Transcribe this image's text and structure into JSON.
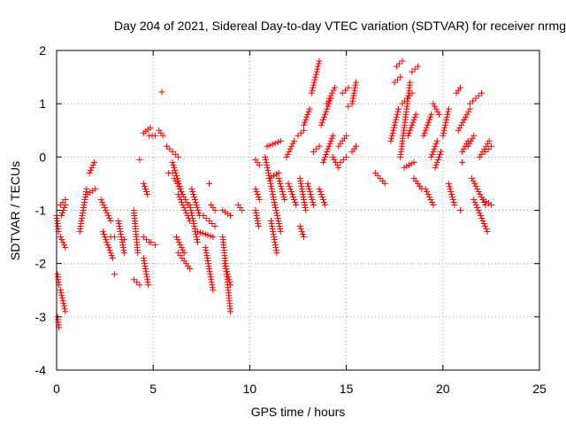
{
  "chart_data": {
    "type": "scatter",
    "title": "Day 204 of 2021, Sidereal Day-to-day VTEC variation (SDTVAR) for receiver nrmg",
    "xlabel": "GPS time / hours",
    "ylabel": "SDTVAR / TECUs",
    "xlim": [
      0,
      25
    ],
    "ylim": [
      -4,
      2
    ],
    "xticks": [
      0,
      5,
      10,
      15,
      20,
      25
    ],
    "xtick_labels": [
      "0",
      "5",
      "10",
      "15",
      "20",
      "25"
    ],
    "yticks": [
      -4,
      -3,
      -2,
      -1,
      0,
      1,
      2
    ],
    "ytick_labels": [
      "-4",
      "-3",
      "-2",
      "-1",
      "0",
      "1",
      "2"
    ],
    "grid": true,
    "marker": "+",
    "marker_color": "#ff0000",
    "tracks": [
      {
        "x": [
          0.0,
          0.1
        ],
        "y": [
          -1.1,
          -1.4
        ]
      },
      {
        "x": [
          0.05,
          0.12
        ],
        "y": [
          -2.2,
          -2.4
        ]
      },
      {
        "x": [
          0.05,
          0.12
        ],
        "y": [
          -3.0,
          -3.2
        ]
      },
      {
        "x": [
          0.2,
          0.45
        ],
        "y": [
          -0.9,
          -0.8
        ]
      },
      {
        "x": [
          0.2,
          0.45
        ],
        "y": [
          -1.5,
          -1.7
        ]
      },
      {
        "x": [
          0.25,
          0.45
        ],
        "y": [
          -1.1,
          -0.9
        ]
      },
      {
        "x": [
          0.2,
          0.45
        ],
        "y": [
          -2.5,
          -2.9
        ]
      },
      {
        "x": [
          1.2,
          1.55
        ],
        "y": [
          -1.4,
          -0.6
        ]
      },
      {
        "x": [
          1.6,
          2.0
        ],
        "y": [
          -0.7,
          -0.6
        ]
      },
      {
        "x": [
          1.7,
          1.95
        ],
        "y": [
          -0.3,
          -0.1
        ]
      },
      {
        "x": [
          2.3,
          2.8
        ],
        "y": [
          -0.8,
          -1.2
        ]
      },
      {
        "x": [
          2.4,
          2.9
        ],
        "y": [
          -1.4,
          -1.9
        ]
      },
      {
        "x": [
          2.8,
          3.0
        ],
        "y": [
          -1.5,
          -1.5
        ]
      },
      {
        "x": [
          3.2,
          3.5
        ],
        "y": [
          -1.2,
          -1.8
        ]
      },
      {
        "x": [
          4.0,
          4.2
        ],
        "y": [
          -1.0,
          -1.8
        ]
      },
      {
        "x": [
          4.0,
          4.3
        ],
        "y": [
          -2.3,
          -2.4
        ]
      },
      {
        "x": [
          4.5,
          4.85
        ],
        "y": [
          0.45,
          0.55
        ]
      },
      {
        "x": [
          4.5,
          4.7
        ],
        "y": [
          -0.5,
          -0.7
        ]
      },
      {
        "x": [
          4.5,
          4.8
        ],
        "y": [
          -1.5,
          -1.6
        ]
      },
      {
        "x": [
          4.5,
          4.75
        ],
        "y": [
          -1.9,
          -2.4
        ]
      },
      {
        "x": [
          4.8,
          5.1
        ],
        "y": [
          0.4,
          0.4
        ]
      },
      {
        "x": [
          4.9,
          5.1
        ],
        "y": [
          -1.6,
          -1.65
        ]
      },
      {
        "x": [
          5.3,
          5.5
        ],
        "y": [
          0.5,
          0.4
        ]
      },
      {
        "x": [
          5.7,
          6.3
        ],
        "y": [
          0.2,
          0.0
        ]
      },
      {
        "x": [
          5.8,
          6.0
        ],
        "y": [
          -0.3,
          -0.3
        ]
      },
      {
        "x": [
          6.0,
          6.5
        ],
        "y": [
          -0.1,
          -0.7
        ]
      },
      {
        "x": [
          6.1,
          6.8
        ],
        "y": [
          -0.4,
          -0.9
        ]
      },
      {
        "x": [
          6.3,
          6.9
        ],
        "y": [
          -0.7,
          -1.2
        ]
      },
      {
        "x": [
          6.2,
          6.6
        ],
        "y": [
          -1.5,
          -1.8
        ]
      },
      {
        "x": [
          6.3,
          6.9
        ],
        "y": [
          -1.8,
          -2.1
        ]
      },
      {
        "x": [
          6.9,
          7.3
        ],
        "y": [
          -0.9,
          -1.6
        ]
      },
      {
        "x": [
          7.0,
          7.4
        ],
        "y": [
          -0.6,
          -1.1
        ]
      },
      {
        "x": [
          7.3,
          8.1
        ],
        "y": [
          -1.4,
          -1.5
        ]
      },
      {
        "x": [
          7.6,
          8.2
        ],
        "y": [
          -1.1,
          -1.3
        ]
      },
      {
        "x": [
          7.7,
          8.1
        ],
        "y": [
          -1.7,
          -2.5
        ]
      },
      {
        "x": [
          8.0,
          8.2
        ],
        "y": [
          -0.9,
          -1.0
        ]
      },
      {
        "x": [
          8.6,
          9.0
        ],
        "y": [
          -1.0,
          -1.1
        ]
      },
      {
        "x": [
          8.6,
          9.0
        ],
        "y": [
          -1.5,
          -2.9
        ]
      },
      {
        "x": [
          8.7,
          9.0
        ],
        "y": [
          -2.0,
          -2.4
        ]
      },
      {
        "x": [
          9.4,
          9.6
        ],
        "y": [
          -0.9,
          -1.0
        ]
      },
      {
        "x": [
          10.3,
          10.5
        ],
        "y": [
          -0.05,
          -0.15
        ]
      },
      {
        "x": [
          10.3,
          10.5
        ],
        "y": [
          -0.6,
          -0.8
        ]
      },
      {
        "x": [
          10.3,
          10.45
        ],
        "y": [
          -1.0,
          -1.3
        ]
      },
      {
        "x": [
          10.8,
          11.3
        ],
        "y": [
          0.0,
          -0.9
        ]
      },
      {
        "x": [
          10.9,
          11.6
        ],
        "y": [
          0.2,
          0.3
        ]
      },
      {
        "x": [
          11.0,
          11.5
        ],
        "y": [
          -0.4,
          -0.3
        ]
      },
      {
        "x": [
          11.1,
          11.4
        ],
        "y": [
          -1.2,
          -1.8
        ]
      },
      {
        "x": [
          11.3,
          11.6
        ],
        "y": [
          -0.9,
          -1.4
        ]
      },
      {
        "x": [
          11.5,
          11.8
        ],
        "y": [
          -0.4,
          -0.8
        ]
      },
      {
        "x": [
          11.9,
          12.3
        ],
        "y": [
          0.0,
          0.3
        ]
      },
      {
        "x": [
          12.0,
          12.4
        ],
        "y": [
          -0.5,
          -0.9
        ]
      },
      {
        "x": [
          12.5,
          12.8
        ],
        "y": [
          0.4,
          0.5
        ]
      },
      {
        "x": [
          12.6,
          12.9
        ],
        "y": [
          -0.4,
          -1.0
        ]
      },
      {
        "x": [
          12.6,
          12.8
        ],
        "y": [
          -1.3,
          -1.5
        ]
      },
      {
        "x": [
          12.8,
          13.1
        ],
        "y": [
          0.6,
          0.9
        ]
      },
      {
        "x": [
          13.0,
          13.3
        ],
        "y": [
          -0.5,
          -0.9
        ]
      },
      {
        "x": [
          13.2,
          13.6
        ],
        "y": [
          1.2,
          1.8
        ]
      },
      {
        "x": [
          13.3,
          13.6
        ],
        "y": [
          0.1,
          0.2
        ]
      },
      {
        "x": [
          13.6,
          13.9
        ],
        "y": [
          -0.6,
          -0.9
        ]
      },
      {
        "x": [
          13.7,
          14.2
        ],
        "y": [
          0.6,
          1.1
        ]
      },
      {
        "x": [
          13.8,
          14.3
        ],
        "y": [
          -0.1,
          0.4
        ]
      },
      {
        "x": [
          14.0,
          14.4
        ],
        "y": [
          1.0,
          1.3
        ]
      },
      {
        "x": [
          14.3,
          14.6
        ],
        "y": [
          0.0,
          -0.2
        ]
      },
      {
        "x": [
          14.6,
          15.0
        ],
        "y": [
          0.2,
          0.4
        ]
      },
      {
        "x": [
          14.7,
          15.0
        ],
        "y": [
          -0.1,
          0.0
        ]
      },
      {
        "x": [
          14.8,
          15.1
        ],
        "y": [
          1.2,
          1.3
        ]
      },
      {
        "x": [
          15.3,
          15.5
        ],
        "y": [
          0.1,
          0.2
        ]
      },
      {
        "x": [
          15.3,
          15.5
        ],
        "y": [
          1.0,
          1.4
        ]
      },
      {
        "x": [
          16.5,
          17.0
        ],
        "y": [
          -0.3,
          -0.5
        ]
      },
      {
        "x": [
          17.3,
          17.7
        ],
        "y": [
          0.3,
          0.9
        ]
      },
      {
        "x": [
          17.5,
          17.8
        ],
        "y": [
          1.4,
          1.5
        ]
      },
      {
        "x": [
          17.6,
          17.9
        ],
        "y": [
          1.7,
          1.8
        ]
      },
      {
        "x": [
          17.8,
          18.3
        ],
        "y": [
          0.0,
          1.4
        ]
      },
      {
        "x": [
          17.9,
          18.4
        ],
        "y": [
          1.0,
          1.2
        ]
      },
      {
        "x": [
          18.0,
          18.5
        ],
        "y": [
          -0.2,
          -0.1
        ]
      },
      {
        "x": [
          18.2,
          18.6
        ],
        "y": [
          0.4,
          0.8
        ]
      },
      {
        "x": [
          18.4,
          18.7
        ],
        "y": [
          1.6,
          1.7
        ]
      },
      {
        "x": [
          18.5,
          18.9
        ],
        "y": [
          -0.4,
          -0.6
        ]
      },
      {
        "x": [
          19.0,
          19.4
        ],
        "y": [
          0.4,
          0.8
        ]
      },
      {
        "x": [
          19.1,
          19.5
        ],
        "y": [
          -0.6,
          -0.9
        ]
      },
      {
        "x": [
          19.4,
          19.7
        ],
        "y": [
          0.0,
          0.3
        ]
      },
      {
        "x": [
          19.5,
          19.8
        ],
        "y": [
          1.0,
          0.8
        ]
      },
      {
        "x": [
          19.6,
          19.9
        ],
        "y": [
          -0.2,
          0.1
        ]
      },
      {
        "x": [
          20.0,
          20.3
        ],
        "y": [
          0.4,
          0.9
        ]
      },
      {
        "x": [
          20.3,
          20.6
        ],
        "y": [
          -0.5,
          -0.9
        ]
      },
      {
        "x": [
          20.7,
          20.9
        ],
        "y": [
          1.2,
          1.3
        ]
      },
      {
        "x": [
          20.8,
          21.1
        ],
        "y": [
          0.5,
          0.7
        ]
      },
      {
        "x": [
          21.0,
          21.3
        ],
        "y": [
          0.1,
          0.3
        ]
      },
      {
        "x": [
          21.1,
          21.4
        ],
        "y": [
          0.7,
          0.9
        ]
      },
      {
        "x": [
          21.3,
          21.6
        ],
        "y": [
          0.2,
          0.4
        ]
      },
      {
        "x": [
          21.4,
          22.0
        ],
        "y": [
          1.0,
          1.2
        ]
      },
      {
        "x": [
          21.5,
          22.2
        ],
        "y": [
          -0.4,
          -0.9
        ]
      },
      {
        "x": [
          21.6,
          22.3
        ],
        "y": [
          -0.8,
          -1.4
        ]
      },
      {
        "x": [
          21.9,
          22.4
        ],
        "y": [
          0.0,
          0.3
        ]
      },
      {
        "x": [
          22.1,
          22.5
        ],
        "y": [
          -0.8,
          -0.9
        ]
      },
      {
        "x": [
          22.2,
          22.5
        ],
        "y": [
          0.1,
          0.2
        ]
      }
    ],
    "singles": [
      {
        "x": 5.45,
        "y": 1.22
      },
      {
        "x": 3.0,
        "y": -2.2
      },
      {
        "x": 3.5,
        "y": -1.55
      },
      {
        "x": 7.9,
        "y": -0.5
      },
      {
        "x": 4.3,
        "y": -0.05
      },
      {
        "x": 15.1,
        "y": 0.95
      },
      {
        "x": 20.9,
        "y": -1.0
      },
      {
        "x": 21.0,
        "y": -0.1
      }
    ]
  }
}
